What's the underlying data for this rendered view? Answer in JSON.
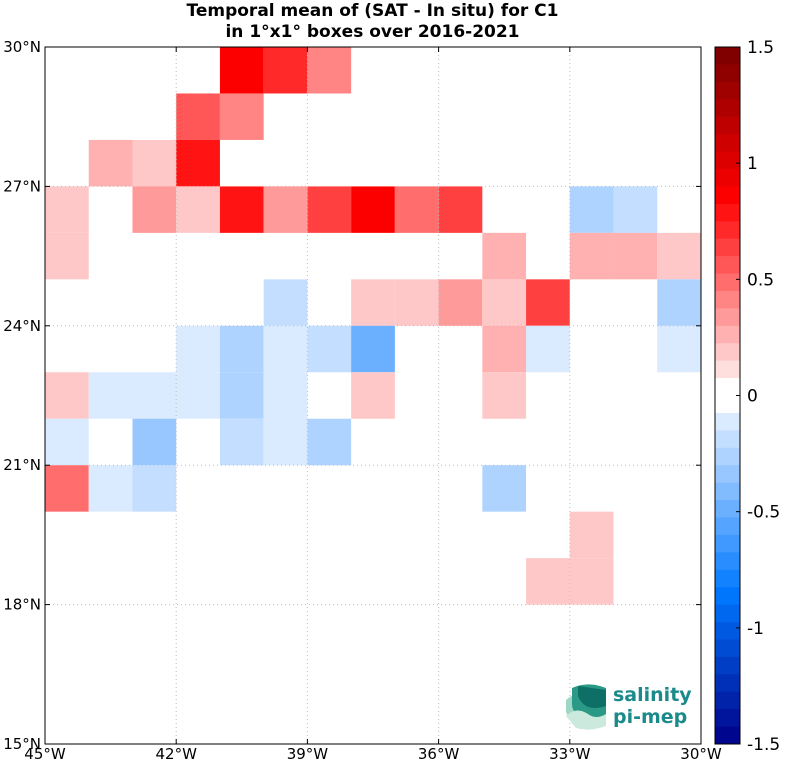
{
  "title": {
    "line1": "Temporal mean of (SAT - In situ) for C1",
    "line2": "in 1°x1° boxes over 2016-2021"
  },
  "chart_data": {
    "type": "heatmap",
    "title": "Temporal mean of (SAT - In situ) for C1 in 1°x1° boxes over 2016-2021",
    "x_range_deg_lon": [
      -45,
      -30
    ],
    "y_range_deg_lat": [
      15,
      30
    ],
    "box_size_deg": 1,
    "grid": true,
    "x_ticks": [
      {
        "value": -45,
        "label": "45°W"
      },
      {
        "value": -42,
        "label": "42°W"
      },
      {
        "value": -39,
        "label": "39°W"
      },
      {
        "value": -36,
        "label": "36°W"
      },
      {
        "value": -33,
        "label": "33°W"
      },
      {
        "value": -30,
        "label": "30°W"
      }
    ],
    "y_ticks": [
      {
        "value": 30,
        "label": "30°N"
      },
      {
        "value": 27,
        "label": "27°N"
      },
      {
        "value": 24,
        "label": "24°N"
      },
      {
        "value": 21,
        "label": "21°N"
      },
      {
        "value": 18,
        "label": "18°N"
      },
      {
        "value": 15,
        "label": "15°N"
      }
    ],
    "colorbar": {
      "range": [
        -1.5,
        1.5
      ],
      "levels": 40,
      "placement": "right",
      "tick_values": [
        1.5,
        1,
        0.5,
        0,
        -0.5,
        -1,
        -1.5
      ],
      "tick_labels": [
        "1.5",
        "1",
        "0.5",
        "0",
        "-0.5",
        "-1",
        "-1.5"
      ]
    },
    "cells": [
      {
        "lon": -41,
        "lat": 29,
        "value": 0.85
      },
      {
        "lon": -40,
        "lat": 29,
        "value": 0.7
      },
      {
        "lon": -39,
        "lat": 29,
        "value": 0.4
      },
      {
        "lon": -42,
        "lat": 28,
        "value": 0.55
      },
      {
        "lon": -41,
        "lat": 28,
        "value": 0.4
      },
      {
        "lon": -44,
        "lat": 27,
        "value": 0.25
      },
      {
        "lon": -43,
        "lat": 27,
        "value": 0.15
      },
      {
        "lon": -42,
        "lat": 27,
        "value": 0.75
      },
      {
        "lon": -45,
        "lat": 26,
        "value": 0.15
      },
      {
        "lon": -43,
        "lat": 26,
        "value": 0.3
      },
      {
        "lon": -42,
        "lat": 26,
        "value": 0.15
      },
      {
        "lon": -41,
        "lat": 26,
        "value": 0.75
      },
      {
        "lon": -40,
        "lat": 26,
        "value": 0.3
      },
      {
        "lon": -39,
        "lat": 26,
        "value": 0.6
      },
      {
        "lon": -38,
        "lat": 26,
        "value": 0.85
      },
      {
        "lon": -37,
        "lat": 26,
        "value": 0.45
      },
      {
        "lon": -36,
        "lat": 26,
        "value": 0.6
      },
      {
        "lon": -33,
        "lat": 26,
        "value": -0.3
      },
      {
        "lon": -32,
        "lat": 26,
        "value": -0.2
      },
      {
        "lon": -45,
        "lat": 25,
        "value": 0.15
      },
      {
        "lon": -35,
        "lat": 25,
        "value": 0.25
      },
      {
        "lon": -33,
        "lat": 25,
        "value": 0.25
      },
      {
        "lon": -32,
        "lat": 25,
        "value": 0.25
      },
      {
        "lon": -31,
        "lat": 25,
        "value": 0.15
      },
      {
        "lon": -40,
        "lat": 24,
        "value": -0.2
      },
      {
        "lon": -38,
        "lat": 24,
        "value": 0.15
      },
      {
        "lon": -37,
        "lat": 24,
        "value": 0.15
      },
      {
        "lon": -36,
        "lat": 24,
        "value": 0.3
      },
      {
        "lon": -35,
        "lat": 24,
        "value": 0.15
      },
      {
        "lon": -34,
        "lat": 24,
        "value": 0.6
      },
      {
        "lon": -31,
        "lat": 24,
        "value": -0.3
      },
      {
        "lon": -42,
        "lat": 23,
        "value": -0.15
      },
      {
        "lon": -41,
        "lat": 23,
        "value": -0.3
      },
      {
        "lon": -40,
        "lat": 23,
        "value": -0.15
      },
      {
        "lon": -39,
        "lat": 23,
        "value": -0.2
      },
      {
        "lon": -38,
        "lat": 23,
        "value": -0.5
      },
      {
        "lon": -35,
        "lat": 23,
        "value": 0.25
      },
      {
        "lon": -34,
        "lat": 23,
        "value": -0.15
      },
      {
        "lon": -31,
        "lat": 23,
        "value": -0.15
      },
      {
        "lon": -45,
        "lat": 22,
        "value": 0.15
      },
      {
        "lon": -44,
        "lat": 22,
        "value": -0.15
      },
      {
        "lon": -43,
        "lat": 22,
        "value": -0.15
      },
      {
        "lon": -42,
        "lat": 22,
        "value": -0.15
      },
      {
        "lon": -41,
        "lat": 22,
        "value": -0.3
      },
      {
        "lon": -40,
        "lat": 22,
        "value": -0.15
      },
      {
        "lon": -38,
        "lat": 22,
        "value": 0.15
      },
      {
        "lon": -35,
        "lat": 22,
        "value": 0.15
      },
      {
        "lon": -45,
        "lat": 21,
        "value": -0.15
      },
      {
        "lon": -43,
        "lat": 21,
        "value": -0.35
      },
      {
        "lon": -41,
        "lat": 21,
        "value": -0.2
      },
      {
        "lon": -40,
        "lat": 21,
        "value": -0.15
      },
      {
        "lon": -39,
        "lat": 21,
        "value": -0.3
      },
      {
        "lon": -45,
        "lat": 20,
        "value": 0.45
      },
      {
        "lon": -44,
        "lat": 20,
        "value": -0.15
      },
      {
        "lon": -43,
        "lat": 20,
        "value": -0.2
      },
      {
        "lon": -35,
        "lat": 20,
        "value": -0.3
      },
      {
        "lon": -33,
        "lat": 19,
        "value": 0.15
      },
      {
        "lon": -34,
        "lat": 18,
        "value": 0.15
      },
      {
        "lon": -33,
        "lat": 18,
        "value": 0.15
      }
    ]
  },
  "logo": {
    "line1": "salinity",
    "line2": "pi-mep",
    "color": "#1a8a8a"
  }
}
